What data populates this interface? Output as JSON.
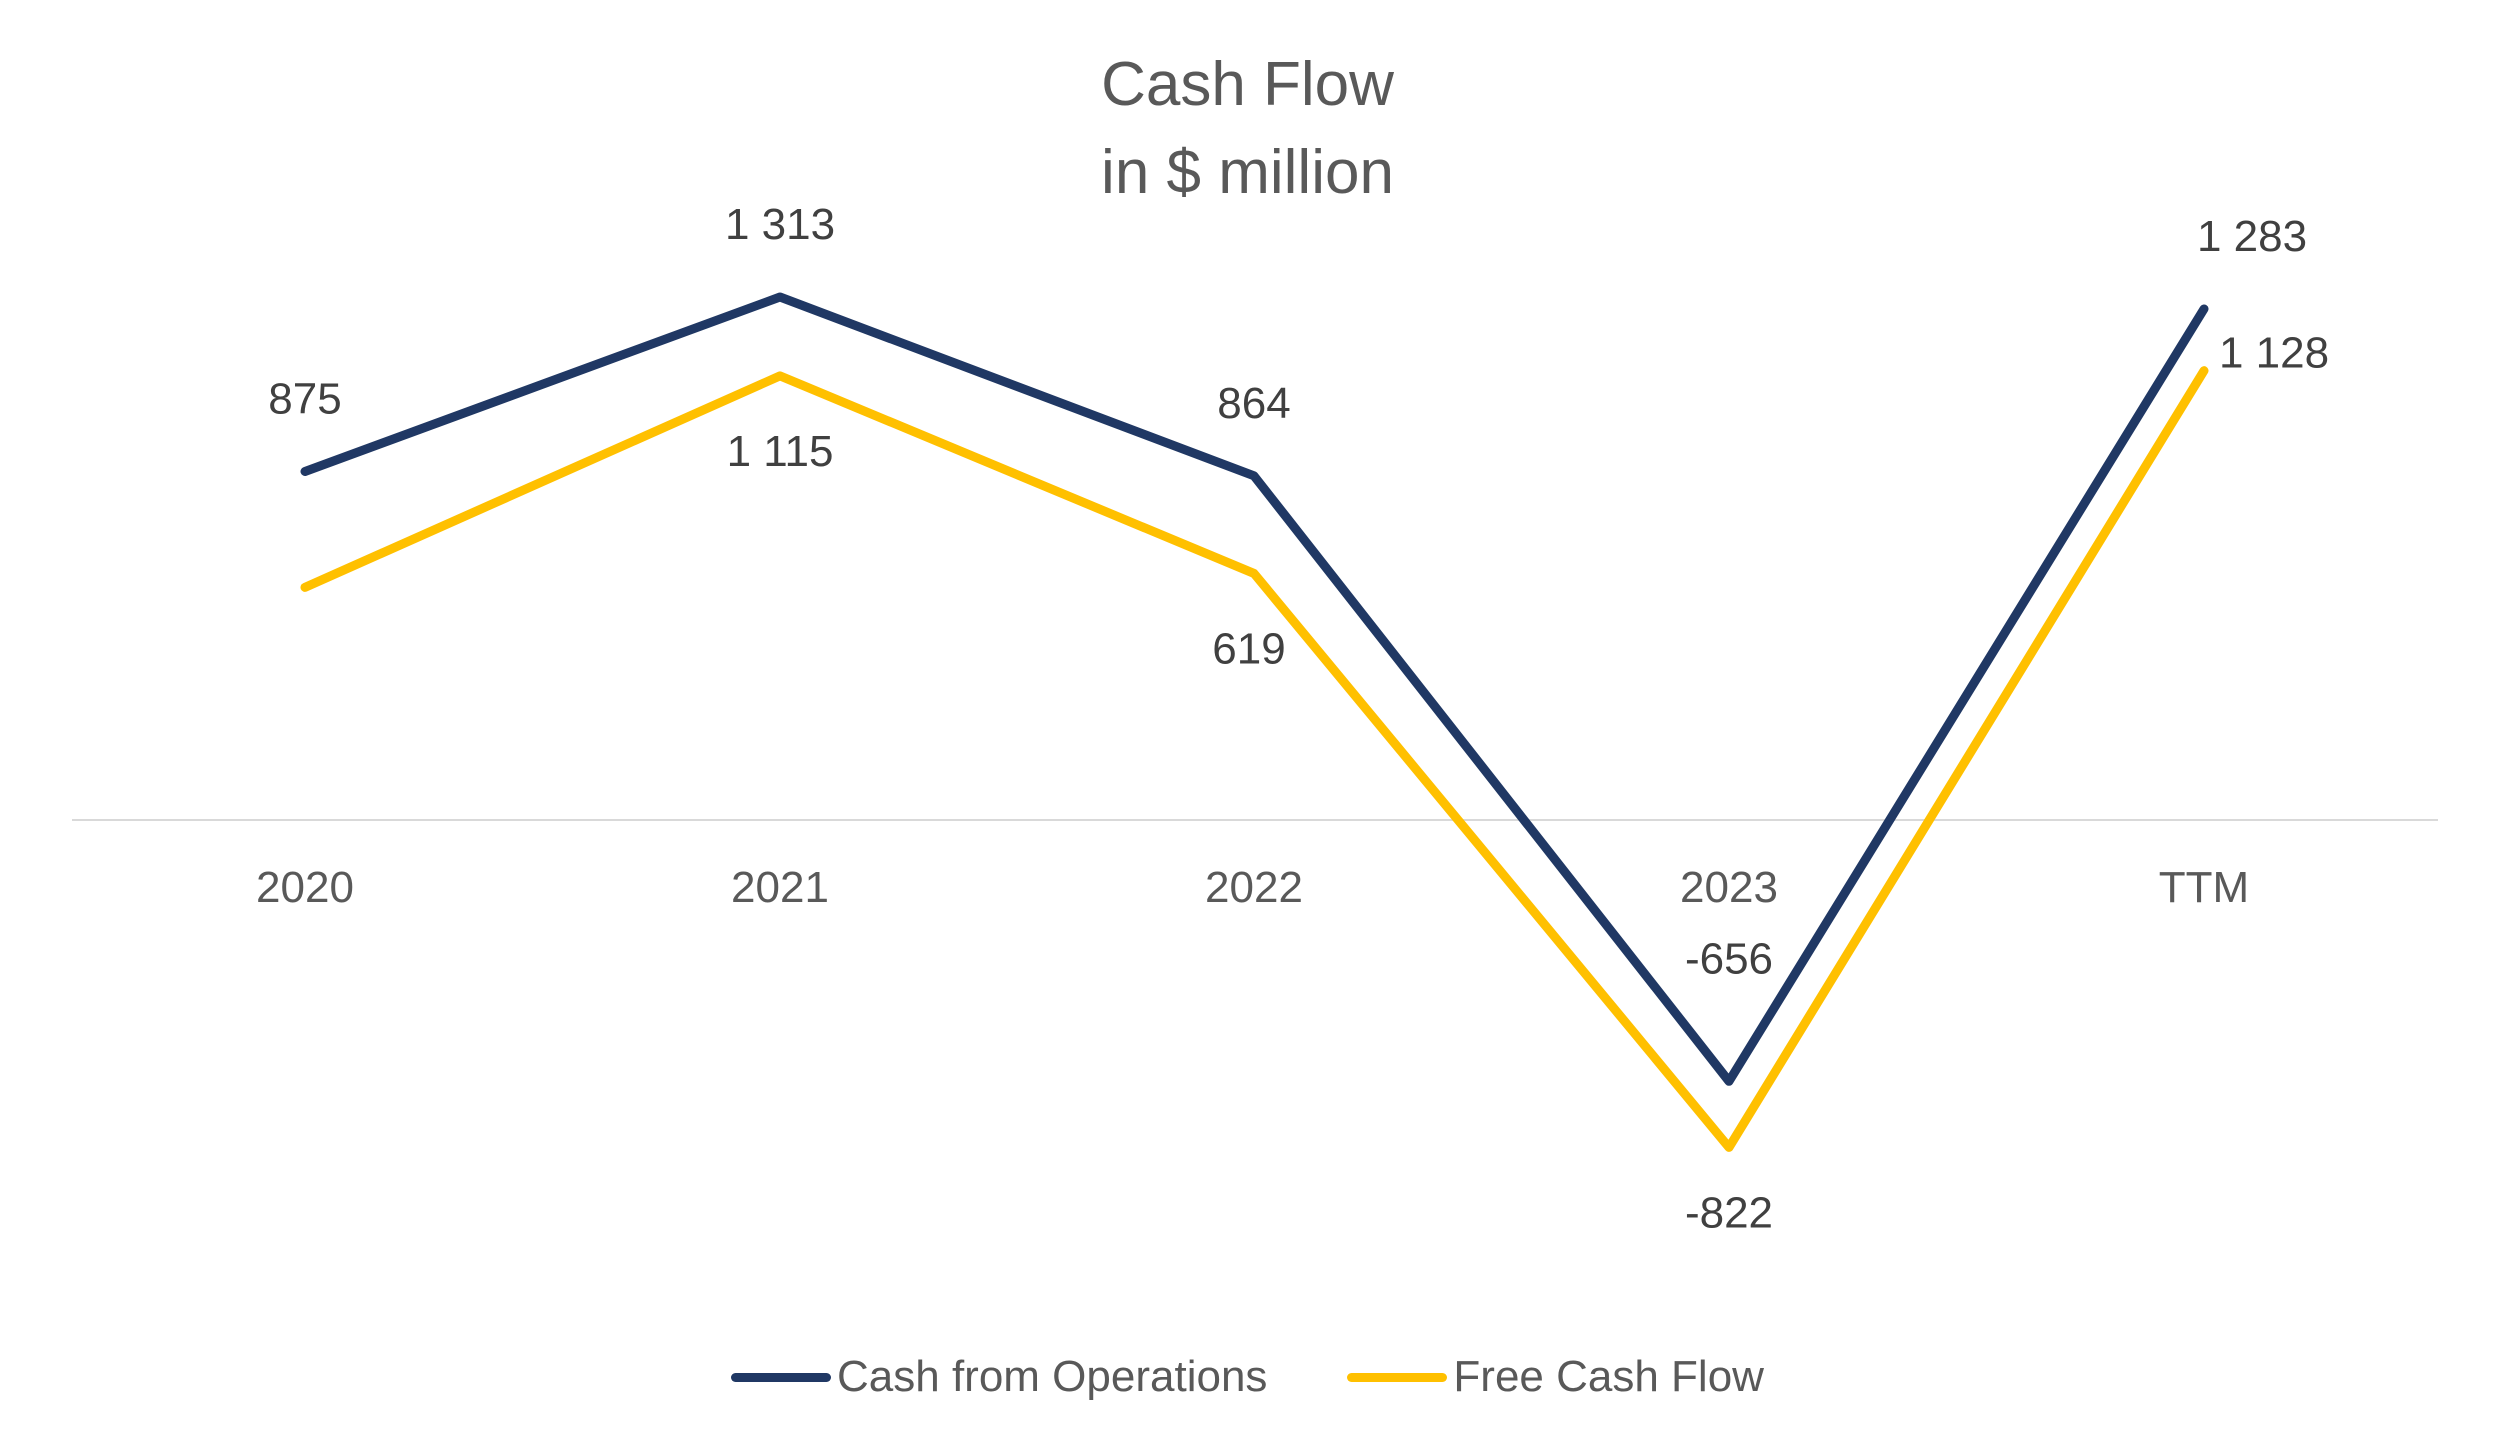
{
  "chart_data": {
    "type": "line",
    "title": "Cash Flow",
    "subtitle": "in $ million",
    "categories": [
      "2020",
      "2021",
      "2022",
      "2023",
      "TTM"
    ],
    "series": [
      {
        "name": "Cash from Operations",
        "color": "#203864",
        "values": [
          875,
          1313,
          864,
          -656,
          1283
        ],
        "labels": [
          "875",
          "1 313",
          "864",
          "-656",
          "1 283"
        ]
      },
      {
        "name": "Free Cash Flow",
        "color": "#FFC000",
        "values": [
          584,
          1115,
          619,
          -822,
          1128
        ],
        "labels": [
          "",
          "1 115",
          "619",
          "-822",
          "1 128"
        ]
      }
    ],
    "xlabel": "",
    "ylabel": "",
    "ylim": [
      -1200,
      1600
    ],
    "grid": false,
    "legend_position": "bottom"
  }
}
